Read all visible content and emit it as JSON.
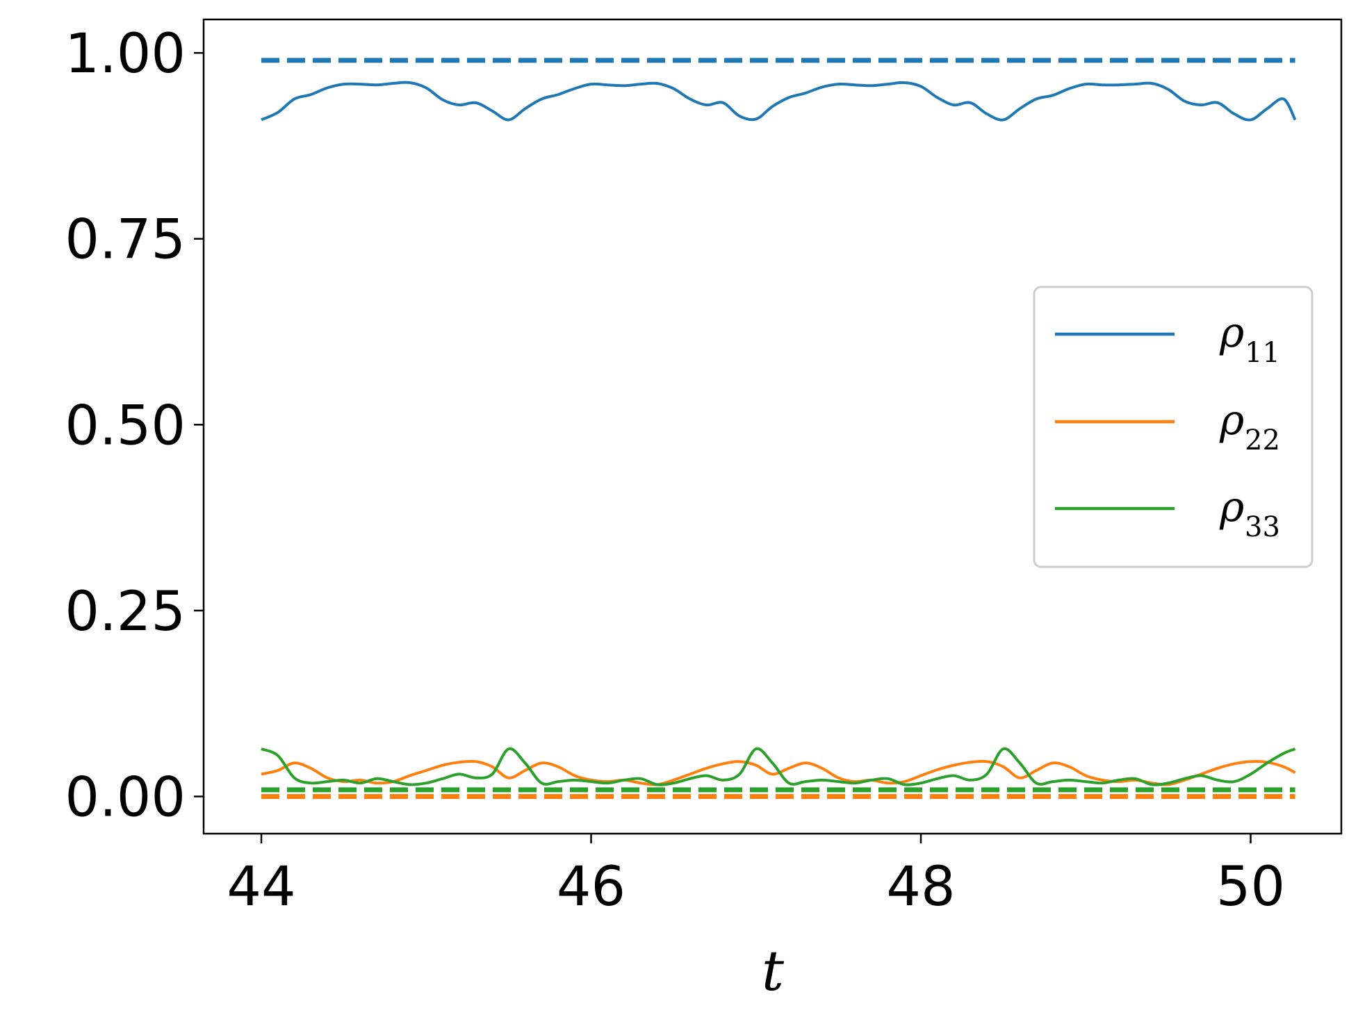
{
  "chart_data": {
    "type": "line",
    "xlabel": "t",
    "ylabel": "",
    "xlim": [
      43.65,
      50.55
    ],
    "ylim": [
      -0.05,
      1.045
    ],
    "xticks": [
      44,
      46,
      48,
      50
    ],
    "xtick_labels": [
      "44",
      "46",
      "48",
      "50"
    ],
    "yticks": [
      0.0,
      0.25,
      0.5,
      0.75,
      1.0
    ],
    "ytick_labels": [
      "0.00",
      "0.25",
      "0.50",
      "0.75",
      "1.00"
    ],
    "grid": false,
    "legend_position": "center-right",
    "legend": [
      {
        "symbol": "ρ",
        "subscript": "11",
        "color": "#1f77b4"
      },
      {
        "symbol": "ρ",
        "subscript": "22",
        "color": "#ff7f0e"
      },
      {
        "symbol": "ρ",
        "subscript": "33",
        "color": "#2ca02c"
      }
    ],
    "series": [
      {
        "label": "rho11",
        "style": "solid",
        "color": "#1f77b4",
        "x": [
          44.0,
          44.1,
          44.2,
          44.3,
          44.4,
          44.5,
          44.6,
          44.7,
          44.8,
          44.9,
          45.0,
          45.1,
          45.2,
          45.3,
          45.4,
          45.5,
          45.6,
          45.7,
          45.8,
          45.9,
          46.0,
          46.1,
          46.2,
          46.3,
          46.4,
          46.5,
          46.6,
          46.7,
          46.8,
          46.9,
          47.0,
          47.1,
          47.2,
          47.3,
          47.4,
          47.5,
          47.6,
          47.7,
          47.8,
          47.9,
          48.0,
          48.1,
          48.2,
          48.3,
          48.4,
          48.5,
          48.6,
          48.7,
          48.8,
          48.9,
          49.0,
          49.1,
          49.2,
          49.3,
          49.4,
          49.5,
          49.6,
          49.7,
          49.8,
          49.9,
          50.0,
          50.1,
          50.2,
          50.27
        ],
        "y": [
          0.91,
          0.92,
          0.938,
          0.944,
          0.953,
          0.958,
          0.958,
          0.957,
          0.959,
          0.96,
          0.953,
          0.937,
          0.93,
          0.933,
          0.922,
          0.91,
          0.925,
          0.938,
          0.944,
          0.952,
          0.958,
          0.957,
          0.956,
          0.958,
          0.959,
          0.952,
          0.938,
          0.93,
          0.933,
          0.915,
          0.911,
          0.928,
          0.94,
          0.946,
          0.954,
          0.958,
          0.957,
          0.956,
          0.958,
          0.96,
          0.955,
          0.94,
          0.93,
          0.933,
          0.918,
          0.91,
          0.925,
          0.938,
          0.943,
          0.952,
          0.958,
          0.957,
          0.957,
          0.958,
          0.959,
          0.951,
          0.935,
          0.93,
          0.933,
          0.918,
          0.91,
          0.925,
          0.938,
          0.91
        ]
      },
      {
        "label": "rho22",
        "style": "solid",
        "color": "#ff7f0e",
        "x": [
          44.0,
          44.1,
          44.2,
          44.3,
          44.4,
          44.5,
          44.6,
          44.7,
          44.8,
          44.9,
          45.0,
          45.1,
          45.2,
          45.3,
          45.4,
          45.5,
          45.6,
          45.7,
          45.8,
          45.9,
          46.0,
          46.1,
          46.2,
          46.3,
          46.4,
          46.5,
          46.6,
          46.7,
          46.8,
          46.9,
          47.0,
          47.1,
          47.2,
          47.3,
          47.4,
          47.5,
          47.6,
          47.7,
          47.8,
          47.9,
          48.0,
          48.1,
          48.2,
          48.3,
          48.4,
          48.5,
          48.6,
          48.7,
          48.8,
          48.9,
          49.0,
          49.1,
          49.2,
          49.3,
          49.4,
          49.5,
          49.6,
          49.7,
          49.8,
          49.9,
          50.0,
          50.1,
          50.2,
          50.27
        ],
        "y": [
          0.03,
          0.035,
          0.045,
          0.038,
          0.025,
          0.02,
          0.022,
          0.018,
          0.02,
          0.028,
          0.035,
          0.042,
          0.046,
          0.047,
          0.04,
          0.025,
          0.035,
          0.045,
          0.04,
          0.028,
          0.022,
          0.02,
          0.022,
          0.018,
          0.016,
          0.022,
          0.03,
          0.038,
          0.044,
          0.047,
          0.042,
          0.03,
          0.038,
          0.045,
          0.038,
          0.025,
          0.02,
          0.022,
          0.018,
          0.02,
          0.028,
          0.036,
          0.042,
          0.046,
          0.047,
          0.04,
          0.025,
          0.035,
          0.045,
          0.04,
          0.028,
          0.022,
          0.02,
          0.022,
          0.018,
          0.016,
          0.022,
          0.03,
          0.038,
          0.044,
          0.047,
          0.046,
          0.04,
          0.032
        ]
      },
      {
        "label": "rho33",
        "style": "solid",
        "color": "#2ca02c",
        "x": [
          44.0,
          44.1,
          44.2,
          44.3,
          44.4,
          44.5,
          44.6,
          44.7,
          44.8,
          44.9,
          45.0,
          45.1,
          45.2,
          45.3,
          45.4,
          45.5,
          45.6,
          45.7,
          45.8,
          45.9,
          46.0,
          46.1,
          46.2,
          46.3,
          46.4,
          46.5,
          46.6,
          46.7,
          46.8,
          46.9,
          47.0,
          47.1,
          47.2,
          47.3,
          47.4,
          47.5,
          47.6,
          47.7,
          47.8,
          47.9,
          48.0,
          48.1,
          48.2,
          48.3,
          48.4,
          48.5,
          48.6,
          48.7,
          48.8,
          48.9,
          49.0,
          49.1,
          49.2,
          49.3,
          49.4,
          49.5,
          49.6,
          49.7,
          49.8,
          49.9,
          50.0,
          50.1,
          50.2,
          50.27
        ],
        "y": [
          0.064,
          0.055,
          0.025,
          0.018,
          0.02,
          0.022,
          0.018,
          0.024,
          0.02,
          0.016,
          0.018,
          0.024,
          0.03,
          0.025,
          0.03,
          0.064,
          0.045,
          0.018,
          0.02,
          0.022,
          0.02,
          0.018,
          0.022,
          0.024,
          0.016,
          0.018,
          0.024,
          0.028,
          0.022,
          0.03,
          0.064,
          0.045,
          0.018,
          0.02,
          0.022,
          0.02,
          0.018,
          0.022,
          0.024,
          0.016,
          0.018,
          0.024,
          0.028,
          0.022,
          0.03,
          0.064,
          0.045,
          0.018,
          0.02,
          0.022,
          0.02,
          0.018,
          0.022,
          0.024,
          0.016,
          0.018,
          0.024,
          0.028,
          0.022,
          0.02,
          0.03,
          0.045,
          0.058,
          0.064
        ]
      },
      {
        "label": "rho11-steady",
        "style": "dashed",
        "color": "#1f77b4",
        "x": [
          44.0,
          50.27
        ],
        "y": [
          0.99,
          0.99
        ]
      },
      {
        "label": "rho22-steady",
        "style": "dashed",
        "color": "#ff7f0e",
        "x": [
          44.0,
          50.27
        ],
        "y": [
          0.0,
          0.0
        ]
      },
      {
        "label": "rho33-steady",
        "style": "dashed",
        "color": "#2ca02c",
        "x": [
          44.0,
          50.27
        ],
        "y": [
          0.009,
          0.009
        ]
      }
    ]
  }
}
